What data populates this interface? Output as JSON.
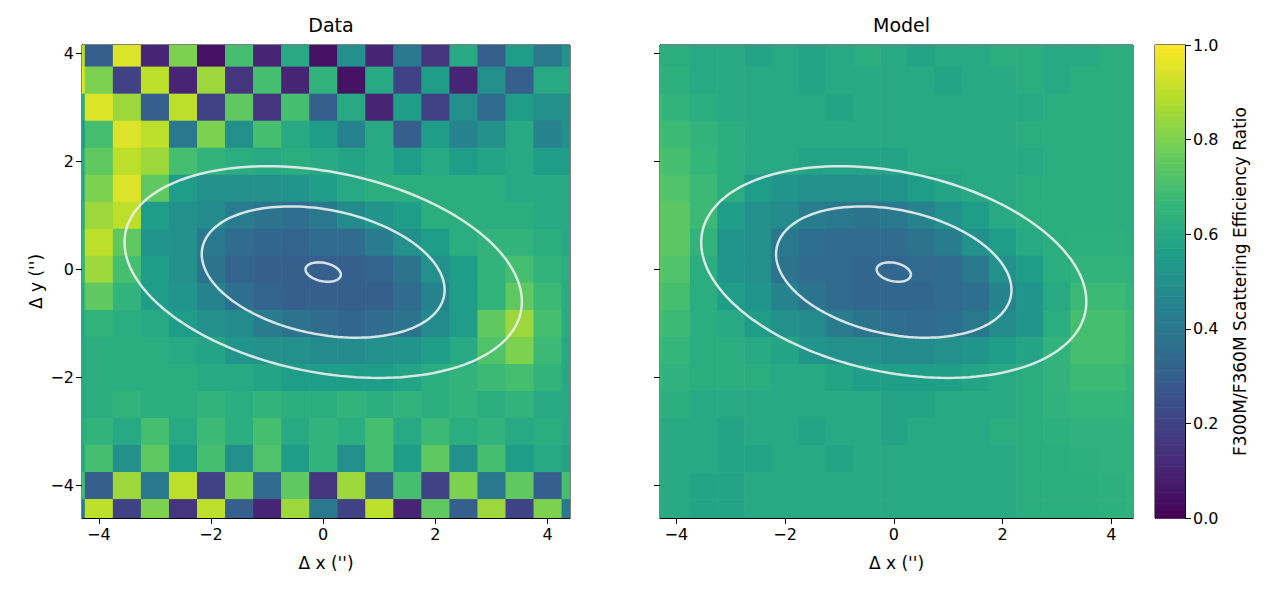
{
  "chart_data": [
    {
      "type": "heatmap",
      "title": "Data",
      "xlabel": "Δ x ('')",
      "ylabel": "Δ y ('')",
      "xlim": [
        -4.3,
        4.4
      ],
      "ylim": [
        -4.6,
        4.15
      ],
      "xticks": [
        {
          "value": -4,
          "label": "−4"
        },
        {
          "value": -2,
          "label": "−2"
        },
        0,
        2,
        4
      ],
      "yticks": [
        {
          "value": -4,
          "label": "−4"
        },
        {
          "value": -2,
          "label": "−2"
        },
        0,
        2,
        4
      ],
      "x": [
        -4.5,
        -4.0,
        -3.5,
        -3.0,
        -2.5,
        -2.0,
        -1.5,
        -1.0,
        -0.5,
        0,
        0.5,
        1.0,
        1.5,
        2.0,
        2.5,
        3.0,
        3.5,
        4.0,
        4.5
      ],
      "y": [
        4.0,
        3.5,
        3.0,
        2.5,
        2.0,
        1.5,
        1.0,
        0.5,
        0,
        -0.5,
        -1.0,
        -1.5,
        -2.0,
        -2.5,
        -3.0,
        -3.5,
        -4.0,
        -4.5
      ],
      "z": [
        [
          0.9,
          0.3,
          0.95,
          0.1,
          0.8,
          0.05,
          0.7,
          0.1,
          0.6,
          0.05,
          0.5,
          0.1,
          0.4,
          0.15,
          0.6,
          0.3,
          0.55,
          0.4,
          0.5
        ],
        [
          0.95,
          0.8,
          0.2,
          0.9,
          0.1,
          0.85,
          0.15,
          0.7,
          0.1,
          0.65,
          0.05,
          0.6,
          0.2,
          0.55,
          0.1,
          0.5,
          0.3,
          0.6,
          0.6
        ],
        [
          0.6,
          0.95,
          0.85,
          0.3,
          0.9,
          0.2,
          0.75,
          0.15,
          0.7,
          0.3,
          0.6,
          0.1,
          0.55,
          0.2,
          0.5,
          0.35,
          0.55,
          0.5,
          0.5
        ],
        [
          0.55,
          0.7,
          0.95,
          0.9,
          0.4,
          0.8,
          0.5,
          0.7,
          0.6,
          0.55,
          0.45,
          0.6,
          0.3,
          0.55,
          0.45,
          0.5,
          0.6,
          0.45,
          0.5
        ],
        [
          0.6,
          0.75,
          0.9,
          0.85,
          0.7,
          0.65,
          0.62,
          0.6,
          0.62,
          0.6,
          0.58,
          0.6,
          0.55,
          0.6,
          0.55,
          0.58,
          0.6,
          0.55,
          0.55
        ],
        [
          0.6,
          0.8,
          0.95,
          0.75,
          0.55,
          0.5,
          0.5,
          0.5,
          0.52,
          0.55,
          0.6,
          0.62,
          0.62,
          0.62,
          0.62,
          0.62,
          0.6,
          0.6,
          0.6
        ],
        [
          0.62,
          0.85,
          0.9,
          0.55,
          0.5,
          0.48,
          0.42,
          0.38,
          0.36,
          0.4,
          0.48,
          0.52,
          0.55,
          0.62,
          0.62,
          0.62,
          0.62,
          0.6,
          0.6
        ],
        [
          0.65,
          0.9,
          0.75,
          0.52,
          0.5,
          0.4,
          0.35,
          0.33,
          0.32,
          0.34,
          0.35,
          0.42,
          0.5,
          0.55,
          0.62,
          0.65,
          0.65,
          0.62,
          0.6
        ],
        [
          0.65,
          0.85,
          0.7,
          0.55,
          0.5,
          0.38,
          0.32,
          0.3,
          0.3,
          0.3,
          0.3,
          0.32,
          0.38,
          0.5,
          0.55,
          0.65,
          0.7,
          0.65,
          0.62
        ],
        [
          0.62,
          0.75,
          0.65,
          0.55,
          0.52,
          0.45,
          0.36,
          0.32,
          0.3,
          0.3,
          0.3,
          0.3,
          0.35,
          0.45,
          0.55,
          0.65,
          0.75,
          0.68,
          0.62
        ],
        [
          0.6,
          0.65,
          0.62,
          0.6,
          0.55,
          0.5,
          0.48,
          0.42,
          0.38,
          0.35,
          0.33,
          0.35,
          0.38,
          0.48,
          0.55,
          0.75,
          0.85,
          0.7,
          0.62
        ],
        [
          0.6,
          0.62,
          0.62,
          0.62,
          0.6,
          0.58,
          0.52,
          0.5,
          0.5,
          0.48,
          0.48,
          0.5,
          0.52,
          0.55,
          0.6,
          0.72,
          0.8,
          0.68,
          0.6
        ],
        [
          0.6,
          0.62,
          0.62,
          0.62,
          0.62,
          0.6,
          0.6,
          0.58,
          0.55,
          0.55,
          0.55,
          0.55,
          0.58,
          0.62,
          0.65,
          0.68,
          0.7,
          0.65,
          0.6
        ],
        [
          0.6,
          0.62,
          0.65,
          0.62,
          0.62,
          0.65,
          0.62,
          0.65,
          0.62,
          0.62,
          0.65,
          0.62,
          0.65,
          0.62,
          0.65,
          0.62,
          0.65,
          0.6,
          0.6
        ],
        [
          0.62,
          0.65,
          0.6,
          0.7,
          0.6,
          0.68,
          0.62,
          0.7,
          0.6,
          0.65,
          0.62,
          0.7,
          0.6,
          0.68,
          0.62,
          0.65,
          0.6,
          0.62,
          0.6
        ],
        [
          0.6,
          0.7,
          0.5,
          0.75,
          0.55,
          0.7,
          0.5,
          0.72,
          0.55,
          0.65,
          0.5,
          0.7,
          0.55,
          0.75,
          0.5,
          0.7,
          0.55,
          0.6,
          0.58
        ],
        [
          0.7,
          0.3,
          0.85,
          0.4,
          0.9,
          0.2,
          0.8,
          0.35,
          0.75,
          0.15,
          0.85,
          0.3,
          0.7,
          0.2,
          0.8,
          0.4,
          0.75,
          0.3,
          0.7
        ],
        [
          0.4,
          0.9,
          0.2,
          0.8,
          0.15,
          0.9,
          0.3,
          0.1,
          0.85,
          0.4,
          0.2,
          0.9,
          0.1,
          0.75,
          0.3,
          0.85,
          0.2,
          0.8,
          0.4
        ]
      ],
      "contours": [
        {
          "center": [
            0,
            -0.05
          ],
          "a": 3.6,
          "b": 1.85,
          "angle": -12
        },
        {
          "center": [
            0,
            -0.05
          ],
          "a": 2.2,
          "b": 1.15,
          "angle": -12
        },
        {
          "center": [
            0,
            -0.05
          ],
          "a": 0.32,
          "b": 0.17,
          "angle": -12
        }
      ]
    },
    {
      "type": "heatmap",
      "title": "Model",
      "xlabel": "Δ x ('')",
      "tick_labels": "x",
      "xlim": [
        -4.3,
        4.4
      ],
      "ylim": [
        -4.6,
        4.15
      ],
      "xticks": [
        {
          "value": -4,
          "label": "−4"
        },
        {
          "value": -2,
          "label": "−2"
        },
        0,
        2,
        4
      ],
      "yticks": [
        -4,
        -2,
        0,
        2,
        4
      ],
      "x": [
        -4.5,
        -4.0,
        -3.5,
        -3.0,
        -2.5,
        -2.0,
        -1.5,
        -1.0,
        -0.5,
        0,
        0.5,
        1.0,
        1.5,
        2.0,
        2.5,
        3.0,
        3.5,
        4.0,
        4.5
      ],
      "y": [
        4.0,
        3.5,
        3.0,
        2.5,
        2.0,
        1.5,
        1.0,
        0.5,
        0,
        -0.5,
        -1.0,
        -1.5,
        -2.0,
        -2.5,
        -3.0,
        -3.5,
        -4.0,
        -4.5
      ],
      "z": [
        [
          0.62,
          0.62,
          0.6,
          0.6,
          0.58,
          0.6,
          0.58,
          0.6,
          0.62,
          0.6,
          0.58,
          0.6,
          0.6,
          0.62,
          0.62,
          0.6,
          0.6,
          0.62,
          0.62
        ],
        [
          0.65,
          0.63,
          0.6,
          0.6,
          0.6,
          0.6,
          0.58,
          0.6,
          0.6,
          0.6,
          0.6,
          0.58,
          0.6,
          0.6,
          0.62,
          0.6,
          0.62,
          0.62,
          0.62
        ],
        [
          0.68,
          0.65,
          0.62,
          0.6,
          0.6,
          0.6,
          0.6,
          0.58,
          0.6,
          0.6,
          0.6,
          0.6,
          0.6,
          0.6,
          0.6,
          0.62,
          0.62,
          0.62,
          0.62
        ],
        [
          0.7,
          0.68,
          0.65,
          0.62,
          0.6,
          0.6,
          0.6,
          0.6,
          0.6,
          0.6,
          0.6,
          0.6,
          0.6,
          0.6,
          0.62,
          0.62,
          0.62,
          0.62,
          0.62
        ],
        [
          0.72,
          0.7,
          0.66,
          0.62,
          0.6,
          0.6,
          0.58,
          0.58,
          0.58,
          0.58,
          0.6,
          0.6,
          0.6,
          0.6,
          0.6,
          0.62,
          0.62,
          0.62,
          0.62
        ],
        [
          0.74,
          0.72,
          0.68,
          0.62,
          0.55,
          0.52,
          0.5,
          0.5,
          0.5,
          0.52,
          0.55,
          0.58,
          0.6,
          0.6,
          0.62,
          0.62,
          0.62,
          0.62,
          0.62
        ],
        [
          0.75,
          0.74,
          0.68,
          0.55,
          0.5,
          0.48,
          0.42,
          0.4,
          0.38,
          0.4,
          0.45,
          0.5,
          0.55,
          0.6,
          0.62,
          0.62,
          0.62,
          0.62,
          0.62
        ],
        [
          0.75,
          0.74,
          0.65,
          0.52,
          0.5,
          0.4,
          0.36,
          0.35,
          0.35,
          0.35,
          0.38,
          0.42,
          0.5,
          0.55,
          0.6,
          0.62,
          0.63,
          0.63,
          0.62
        ],
        [
          0.74,
          0.72,
          0.62,
          0.52,
          0.5,
          0.38,
          0.35,
          0.34,
          0.33,
          0.33,
          0.34,
          0.35,
          0.4,
          0.5,
          0.55,
          0.62,
          0.65,
          0.65,
          0.64
        ],
        [
          0.72,
          0.7,
          0.62,
          0.55,
          0.52,
          0.45,
          0.38,
          0.34,
          0.33,
          0.33,
          0.33,
          0.34,
          0.36,
          0.45,
          0.52,
          0.6,
          0.68,
          0.68,
          0.66
        ],
        [
          0.7,
          0.68,
          0.62,
          0.6,
          0.55,
          0.5,
          0.48,
          0.42,
          0.38,
          0.36,
          0.35,
          0.36,
          0.4,
          0.48,
          0.52,
          0.62,
          0.7,
          0.7,
          0.68
        ],
        [
          0.68,
          0.66,
          0.62,
          0.62,
          0.6,
          0.58,
          0.52,
          0.5,
          0.5,
          0.48,
          0.48,
          0.5,
          0.52,
          0.55,
          0.58,
          0.65,
          0.7,
          0.7,
          0.68
        ],
        [
          0.66,
          0.64,
          0.62,
          0.62,
          0.62,
          0.6,
          0.6,
          0.58,
          0.56,
          0.56,
          0.56,
          0.56,
          0.58,
          0.6,
          0.62,
          0.65,
          0.68,
          0.68,
          0.66
        ],
        [
          0.64,
          0.62,
          0.6,
          0.6,
          0.6,
          0.6,
          0.6,
          0.6,
          0.6,
          0.58,
          0.58,
          0.6,
          0.6,
          0.6,
          0.62,
          0.64,
          0.66,
          0.66,
          0.65
        ],
        [
          0.62,
          0.6,
          0.6,
          0.58,
          0.6,
          0.6,
          0.58,
          0.6,
          0.6,
          0.58,
          0.6,
          0.6,
          0.6,
          0.62,
          0.62,
          0.63,
          0.64,
          0.64,
          0.64
        ],
        [
          0.62,
          0.6,
          0.6,
          0.58,
          0.58,
          0.6,
          0.6,
          0.58,
          0.6,
          0.6,
          0.6,
          0.6,
          0.6,
          0.6,
          0.62,
          0.62,
          0.63,
          0.64,
          0.64
        ],
        [
          0.62,
          0.6,
          0.58,
          0.58,
          0.6,
          0.6,
          0.6,
          0.6,
          0.6,
          0.6,
          0.6,
          0.6,
          0.6,
          0.6,
          0.62,
          0.62,
          0.62,
          0.63,
          0.64
        ],
        [
          0.62,
          0.6,
          0.58,
          0.58,
          0.6,
          0.6,
          0.6,
          0.6,
          0.6,
          0.6,
          0.6,
          0.6,
          0.6,
          0.6,
          0.62,
          0.62,
          0.62,
          0.63,
          0.64
        ]
      ],
      "contours": [
        {
          "center": [
            0,
            -0.05
          ],
          "a": 3.6,
          "b": 1.85,
          "angle": -12
        },
        {
          "center": [
            0,
            -0.05
          ],
          "a": 2.2,
          "b": 1.15,
          "angle": -12
        },
        {
          "center": [
            0,
            -0.05
          ],
          "a": 0.32,
          "b": 0.17,
          "angle": -12
        }
      ],
      "colorbar": {
        "range": [
          0,
          1
        ],
        "ticks": [
          {
            "value": 0,
            "label": "0.0"
          },
          0.2,
          0.4,
          0.6,
          0.8,
          {
            "value": 1,
            "label": "1.0"
          }
        ],
        "label": "F300M/F360M Scattering Efficiency Ratio"
      }
    }
  ]
}
